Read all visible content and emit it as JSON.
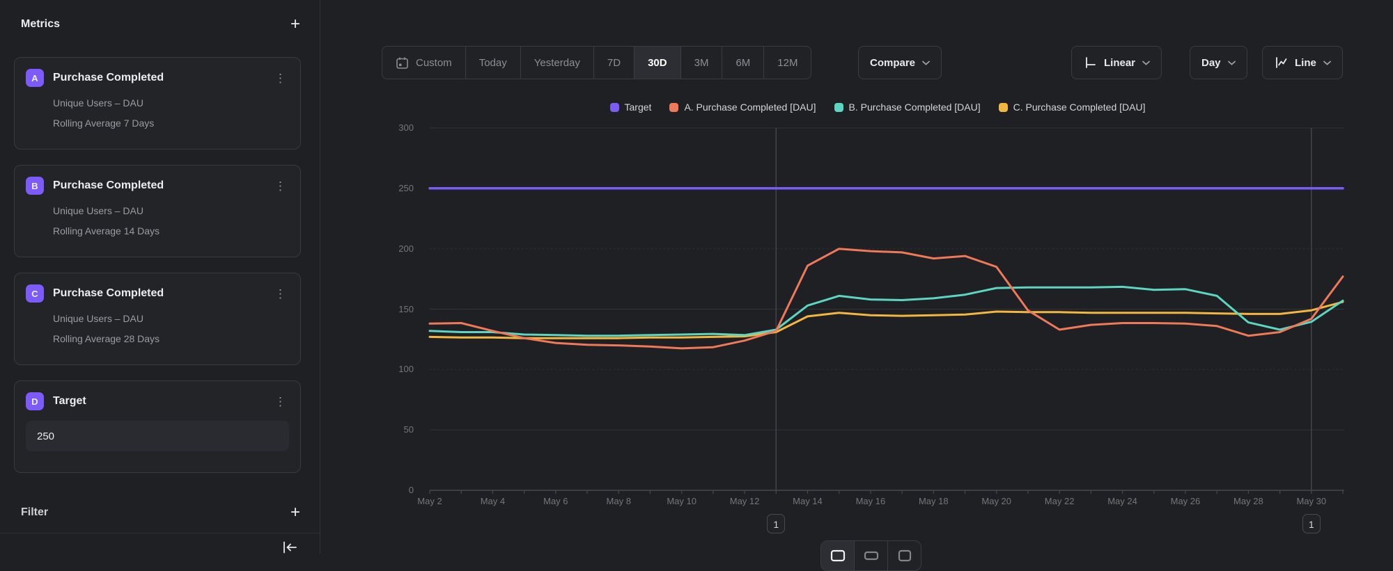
{
  "sidebar": {
    "title": "Metrics",
    "add_label": "+",
    "metrics": [
      {
        "letter": "A",
        "title": "Purchase Completed",
        "measure": "Unique Users – DAU",
        "detail": "Rolling Average 7 Days"
      },
      {
        "letter": "B",
        "title": "Purchase Completed",
        "measure": "Unique Users – DAU",
        "detail": "Rolling Average 14 Days"
      },
      {
        "letter": "C",
        "title": "Purchase Completed",
        "measure": "Unique Users – DAU",
        "detail": "Rolling Average 28 Days"
      },
      {
        "letter": "D",
        "title": "Target",
        "value": "250"
      }
    ],
    "filter": {
      "label": "Filter",
      "add_label": "+"
    }
  },
  "toolbar": {
    "ranges": [
      "Custom",
      "Today",
      "Yesterday",
      "7D",
      "30D",
      "3M",
      "6M",
      "12M"
    ],
    "selected_range": "30D",
    "compare_label": "Compare",
    "scale_label": "Linear",
    "interval_label": "Day",
    "chart_type_label": "Line"
  },
  "icons": [
    "calendar-icon",
    "chevron-down-icon",
    "kebab-menu-icon",
    "plus-icon",
    "axis-scale-icon",
    "line-chart-icon",
    "collapse-sidebar-icon"
  ],
  "colors": {
    "background": "#1f2023",
    "target": "#7b5cf6",
    "series_a": "#f0795a",
    "series_b": "#5cd6c3",
    "series_c": "#f3b73f",
    "badge_purple": "#7d5bfa"
  },
  "chart_data": {
    "type": "line",
    "title": "",
    "xlabel": "",
    "ylabel": "",
    "ylim": [
      0,
      300
    ],
    "yticks": [
      300,
      250,
      200,
      150,
      100,
      50,
      0
    ],
    "x_label_every": 2,
    "grid": true,
    "legend_position": "top-center",
    "categories": [
      "May 2",
      "May 3",
      "May 4",
      "May 5",
      "May 6",
      "May 7",
      "May 8",
      "May 9",
      "May 10",
      "May 11",
      "May 12",
      "May 13",
      "May 14",
      "May 15",
      "May 16",
      "May 17",
      "May 18",
      "May 19",
      "May 20",
      "May 21",
      "May 22",
      "May 23",
      "May 24",
      "May 25",
      "May 26",
      "May 27",
      "May 28",
      "May 29",
      "May 30",
      "May 31"
    ],
    "series": [
      {
        "name": "Target",
        "color": "#7b5cf6",
        "values": [
          250,
          250,
          250,
          250,
          250,
          250,
          250,
          250,
          250,
          250,
          250,
          250,
          250,
          250,
          250,
          250,
          250,
          250,
          250,
          250,
          250,
          250,
          250,
          250,
          250,
          250,
          250,
          250,
          250,
          250
        ]
      },
      {
        "name": "A. Purchase Completed [DAU]",
        "color": "#f0795a",
        "values": [
          138,
          138.5,
          132,
          126,
          122,
          120.5,
          120,
          119,
          117.5,
          118.5,
          124,
          132,
          186,
          200,
          198,
          197,
          192,
          194,
          185,
          149,
          133,
          137,
          138.5,
          138.5,
          138,
          136,
          128,
          131,
          142,
          177
        ]
      },
      {
        "name": "B. Purchase Completed [DAU]",
        "color": "#5cd6c3",
        "values": [
          132,
          131,
          131,
          129,
          128.5,
          128,
          128,
          128.5,
          129,
          129.5,
          128.5,
          133,
          153,
          161,
          158,
          157.5,
          159,
          162,
          167.5,
          168,
          168,
          168,
          168.5,
          166,
          166.5,
          161,
          139,
          133,
          139.5,
          157
        ]
      },
      {
        "name": "C. Purchase Completed [DAU]",
        "color": "#f3b73f",
        "values": [
          127,
          126.5,
          126.5,
          126,
          126,
          126,
          126,
          126.5,
          126.5,
          127,
          127.5,
          131,
          144,
          147,
          145,
          144.5,
          145,
          145.5,
          148,
          147.5,
          147.5,
          147,
          147,
          147,
          147,
          146.5,
          146,
          146,
          149,
          156
        ]
      }
    ],
    "annotations": [
      {
        "x": "May 13",
        "label": "1"
      },
      {
        "x": "May 30",
        "label": "1"
      }
    ]
  }
}
